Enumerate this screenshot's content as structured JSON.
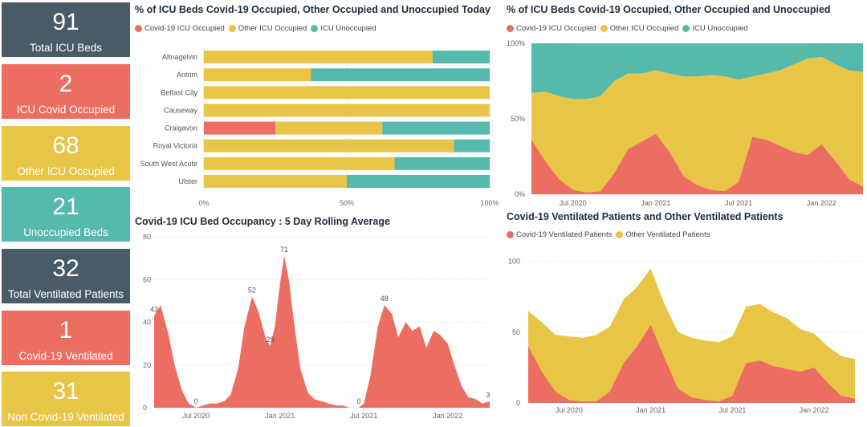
{
  "cards": [
    {
      "value": "91",
      "label": "Total ICU Beds",
      "color": "#4a5b68"
    },
    {
      "value": "2",
      "label": "ICU Covid Occupied",
      "color": "#ec6d61"
    },
    {
      "value": "68",
      "label": "Other ICU Occupied",
      "color": "#e8c546"
    },
    {
      "value": "21",
      "label": "Unoccupied Beds",
      "color": "#55b9ac"
    },
    {
      "value": "32",
      "label": "Total Ventilated Patients",
      "color": "#4a5b68"
    },
    {
      "value": "1",
      "label": "Covid-19 Ventilated",
      "color": "#ec6d61"
    },
    {
      "value": "31",
      "label": "Non Covid-19 Ventilated",
      "color": "#e8c546"
    }
  ],
  "colors": {
    "covid": "#ec6d61",
    "other": "#e8c546",
    "unoccupied": "#55b9ac"
  },
  "chart_data": [
    {
      "type": "bar",
      "orientation": "horizontal",
      "stacked": "100%",
      "title": "% of ICU Beds Covid-19 Occupied, Other Occupied and Unoccupied Today",
      "categories": [
        "Altnagelvin",
        "Antrim",
        "Belfast City",
        "Causeway",
        "Craigavon",
        "Royal Victoria",
        "South West Acute",
        "Ulster"
      ],
      "series": [
        {
          "name": "Covid-19 ICU Occupied",
          "values": [
            0,
            0,
            0,
            0,
            25,
            0,
            0,
            0
          ]
        },
        {
          "name": "Other ICU Occupied",
          "values": [
            80,
            37.5,
            100,
            100,
            37.5,
            87.5,
            66.7,
            50
          ]
        },
        {
          "name": "ICU Unoccupied",
          "values": [
            20,
            62.5,
            0,
            0,
            37.5,
            12.5,
            33.3,
            50
          ]
        }
      ],
      "xticks": [
        "0%",
        "50%",
        "100%"
      ],
      "xlim": [
        0,
        100
      ],
      "legend": "top-left"
    },
    {
      "type": "area",
      "stacked": "100%",
      "title": "% of ICU Beds Covid-19 Occupied, Other Occupied and Unoccupied",
      "x": [
        "2020-04",
        "2020-05",
        "2020-06",
        "2020-07",
        "2020-08",
        "2020-09",
        "2020-10",
        "2020-11",
        "2020-12",
        "2021-01",
        "2021-02",
        "2021-03",
        "2021-04",
        "2021-05",
        "2021-06",
        "2021-07",
        "2021-08",
        "2021-09",
        "2021-10",
        "2021-11",
        "2021-12",
        "2022-01",
        "2022-02",
        "2022-03",
        "2022-04"
      ],
      "series": [
        {
          "name": "Covid-19 ICU Occupied",
          "values": [
            36,
            22,
            10,
            3,
            1,
            2,
            14,
            30,
            35,
            40,
            28,
            12,
            6,
            3,
            2,
            8,
            38,
            36,
            32,
            28,
            26,
            33,
            22,
            10,
            5
          ]
        },
        {
          "name": "Other ICU Occupied",
          "values": [
            31,
            46,
            55,
            60,
            62,
            63,
            61,
            50,
            45,
            42,
            52,
            66,
            72,
            76,
            76,
            68,
            40,
            44,
            50,
            58,
            64,
            58,
            64,
            72,
            76
          ]
        },
        {
          "name": "ICU Unoccupied",
          "values": [
            33,
            32,
            35,
            37,
            37,
            35,
            25,
            20,
            20,
            18,
            20,
            22,
            22,
            21,
            22,
            24,
            22,
            20,
            18,
            14,
            10,
            9,
            14,
            18,
            19
          ]
        }
      ],
      "xticks": [
        "Jul 2020",
        "Jan 2021",
        "Jul 2021",
        "Jan 2022"
      ],
      "yticks": [
        "0%",
        "50%",
        "100%"
      ],
      "ylim": [
        0,
        100
      ],
      "legend": "top-left"
    },
    {
      "type": "area",
      "title": "Covid-19 ICU Bed Occupancy : 5 Day Rolling Average",
      "x": [
        "2020-04-01",
        "2020-04-15",
        "2020-05-01",
        "2020-05-15",
        "2020-06-01",
        "2020-06-15",
        "2020-07-01",
        "2020-07-15",
        "2020-08-01",
        "2020-08-15",
        "2020-09-01",
        "2020-09-15",
        "2020-10-01",
        "2020-10-15",
        "2020-11-01",
        "2020-11-15",
        "2020-12-01",
        "2020-12-10",
        "2020-12-20",
        "2021-01-01",
        "2021-01-10",
        "2021-01-20",
        "2021-02-01",
        "2021-02-15",
        "2021-03-01",
        "2021-03-15",
        "2021-04-01",
        "2021-04-15",
        "2021-05-01",
        "2021-05-15",
        "2021-06-01",
        "2021-06-20",
        "2021-07-01",
        "2021-07-15",
        "2021-08-01",
        "2021-08-15",
        "2021-09-01",
        "2021-09-15",
        "2021-10-01",
        "2021-10-15",
        "2021-11-01",
        "2021-11-15",
        "2021-12-01",
        "2021-12-15",
        "2022-01-01",
        "2022-01-15",
        "2022-02-01",
        "2022-02-15",
        "2022-03-01",
        "2022-03-15",
        "2022-04-01"
      ],
      "values": [
        43,
        48,
        35,
        20,
        8,
        2,
        0,
        1,
        2,
        2,
        3,
        6,
        18,
        38,
        52,
        45,
        32,
        29,
        38,
        58,
        71,
        60,
        40,
        18,
        7,
        4,
        3,
        2,
        1,
        1,
        0,
        0,
        2,
        15,
        38,
        48,
        44,
        33,
        40,
        36,
        38,
        28,
        36,
        34,
        30,
        20,
        10,
        5,
        4,
        2,
        3
      ],
      "data_labels": [
        {
          "x": "2020-04-01",
          "label": "43"
        },
        {
          "x": "2020-07-01",
          "label": "0"
        },
        {
          "x": "2020-11-01",
          "label": "52"
        },
        {
          "x": "2020-12-10",
          "label": "29"
        },
        {
          "x": "2021-01-10",
          "label": "71"
        },
        {
          "x": "2021-06-20",
          "label": "0"
        },
        {
          "x": "2021-08-15",
          "label": "48"
        },
        {
          "x": "2022-04-01",
          "label": "3"
        }
      ],
      "xticks": [
        "Jul 2020",
        "Jan 2021",
        "Jul 2021",
        "Jan 2022"
      ],
      "yticks": [
        0,
        20,
        40,
        60,
        80
      ],
      "ylim": [
        0,
        80
      ]
    },
    {
      "type": "area",
      "stacked": true,
      "title": "Covid-19 Ventilated Patients and Other Ventilated Patients",
      "x": [
        "2020-04",
        "2020-05",
        "2020-06",
        "2020-07",
        "2020-08",
        "2020-09",
        "2020-10",
        "2020-11",
        "2020-12",
        "2021-01",
        "2021-02",
        "2021-03",
        "2021-04",
        "2021-05",
        "2021-06",
        "2021-07",
        "2021-08",
        "2021-09",
        "2021-10",
        "2021-11",
        "2021-12",
        "2022-01",
        "2022-02",
        "2022-03",
        "2022-04"
      ],
      "series": [
        {
          "name": "Covid-19 Ventilated Patients",
          "values": [
            40,
            22,
            8,
            2,
            1,
            1,
            8,
            28,
            40,
            55,
            32,
            10,
            4,
            2,
            1,
            5,
            28,
            30,
            26,
            24,
            22,
            25,
            14,
            5,
            3
          ]
        },
        {
          "name": "Other Ventilated Patients",
          "values": [
            25,
            35,
            40,
            45,
            45,
            47,
            46,
            45,
            42,
            40,
            38,
            40,
            42,
            42,
            42,
            42,
            40,
            40,
            38,
            36,
            30,
            24,
            26,
            28,
            28
          ]
        }
      ],
      "xticks": [
        "Jul 2020",
        "Jan 2021",
        "Jul 2021",
        "Jan 2022"
      ],
      "yticks": [
        0,
        50,
        100
      ],
      "ylim": [
        0,
        110
      ],
      "legend": "top-left"
    }
  ]
}
